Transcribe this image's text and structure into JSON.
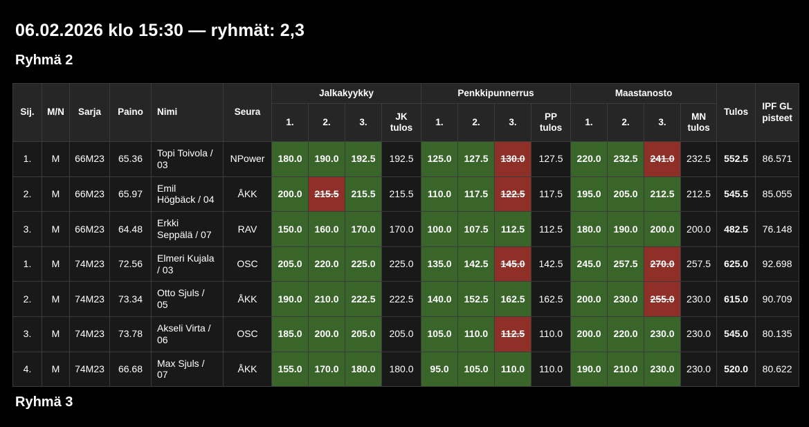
{
  "page": {
    "title": "06.02.2026 klo 15:30 — ryhmät: 2,3",
    "group_heading": "Ryhmä 2",
    "next_group_heading": "Ryhmä 3"
  },
  "colors": {
    "background": "#000000",
    "header_bg": "#262626",
    "cell_bg": "#191919",
    "border": "#3b3b3b",
    "text": "#ffffff",
    "good_lift": "#3a652a",
    "failed_lift": "#8e2f28"
  },
  "table": {
    "columns": {
      "sij": "Sij.",
      "mn": "M/N",
      "sarja": "Sarja",
      "paino": "Paino",
      "nimi": "Nimi",
      "seura": "Seura",
      "squat_group": "Jalkakyykky",
      "bench_group": "Penkkipunnerrus",
      "deadlift_group": "Maastanosto",
      "attempt1": "1.",
      "attempt2": "2.",
      "attempt3": "3.",
      "jk_tulos": "JK tulos",
      "pp_tulos": "PP tulos",
      "mn_tulos": "MN tulos",
      "tulos": "Tulos",
      "ipf": "IPF GL pisteet"
    },
    "rows": [
      {
        "sij": "1.",
        "mn": "M",
        "sarja": "66M23",
        "paino": "65.36",
        "nimi": "Topi Toivola / 03",
        "seura": "NPower",
        "squat": [
          {
            "v": "180.0",
            "r": "good"
          },
          {
            "v": "190.0",
            "r": "good"
          },
          {
            "v": "192.5",
            "r": "good"
          }
        ],
        "squat_total": "192.5",
        "bench": [
          {
            "v": "125.0",
            "r": "good"
          },
          {
            "v": "127.5",
            "r": "good"
          },
          {
            "v": "130.0",
            "r": "fail"
          }
        ],
        "bench_total": "127.5",
        "deadlift": [
          {
            "v": "220.0",
            "r": "good"
          },
          {
            "v": "232.5",
            "r": "good"
          },
          {
            "v": "241.0",
            "r": "fail"
          }
        ],
        "deadlift_total": "232.5",
        "total": "552.5",
        "points": "86.571"
      },
      {
        "sij": "2.",
        "mn": "M",
        "sarja": "66M23",
        "paino": "65.97",
        "nimi": "Emil Högbäck / 04",
        "seura": "ÅKK",
        "squat": [
          {
            "v": "200.0",
            "r": "good"
          },
          {
            "v": "215.5",
            "r": "fail"
          },
          {
            "v": "215.5",
            "r": "good"
          }
        ],
        "squat_total": "215.5",
        "bench": [
          {
            "v": "110.0",
            "r": "good"
          },
          {
            "v": "117.5",
            "r": "good"
          },
          {
            "v": "122.5",
            "r": "fail"
          }
        ],
        "bench_total": "117.5",
        "deadlift": [
          {
            "v": "195.0",
            "r": "good"
          },
          {
            "v": "205.0",
            "r": "good"
          },
          {
            "v": "212.5",
            "r": "good"
          }
        ],
        "deadlift_total": "212.5",
        "total": "545.5",
        "points": "85.055"
      },
      {
        "sij": "3.",
        "mn": "M",
        "sarja": "66M23",
        "paino": "64.48",
        "nimi": "Erkki Seppälä / 07",
        "seura": "RAV",
        "squat": [
          {
            "v": "150.0",
            "r": "good"
          },
          {
            "v": "160.0",
            "r": "good"
          },
          {
            "v": "170.0",
            "r": "good"
          }
        ],
        "squat_total": "170.0",
        "bench": [
          {
            "v": "100.0",
            "r": "good"
          },
          {
            "v": "107.5",
            "r": "good"
          },
          {
            "v": "112.5",
            "r": "good"
          }
        ],
        "bench_total": "112.5",
        "deadlift": [
          {
            "v": "180.0",
            "r": "good"
          },
          {
            "v": "190.0",
            "r": "good"
          },
          {
            "v": "200.0",
            "r": "good"
          }
        ],
        "deadlift_total": "200.0",
        "total": "482.5",
        "points": "76.148"
      },
      {
        "sij": "1.",
        "mn": "M",
        "sarja": "74M23",
        "paino": "72.56",
        "nimi": "Elmeri Kujala / 03",
        "seura": "OSC",
        "squat": [
          {
            "v": "205.0",
            "r": "good"
          },
          {
            "v": "220.0",
            "r": "good"
          },
          {
            "v": "225.0",
            "r": "good"
          }
        ],
        "squat_total": "225.0",
        "bench": [
          {
            "v": "135.0",
            "r": "good"
          },
          {
            "v": "142.5",
            "r": "good"
          },
          {
            "v": "145.0",
            "r": "fail"
          }
        ],
        "bench_total": "142.5",
        "deadlift": [
          {
            "v": "245.0",
            "r": "good"
          },
          {
            "v": "257.5",
            "r": "good"
          },
          {
            "v": "270.0",
            "r": "fail"
          }
        ],
        "deadlift_total": "257.5",
        "total": "625.0",
        "points": "92.698"
      },
      {
        "sij": "2.",
        "mn": "M",
        "sarja": "74M23",
        "paino": "73.34",
        "nimi": "Otto Sjuls / 05",
        "seura": "ÅKK",
        "squat": [
          {
            "v": "190.0",
            "r": "good"
          },
          {
            "v": "210.0",
            "r": "good"
          },
          {
            "v": "222.5",
            "r": "good"
          }
        ],
        "squat_total": "222.5",
        "bench": [
          {
            "v": "140.0",
            "r": "good"
          },
          {
            "v": "152.5",
            "r": "good"
          },
          {
            "v": "162.5",
            "r": "good"
          }
        ],
        "bench_total": "162.5",
        "deadlift": [
          {
            "v": "200.0",
            "r": "good"
          },
          {
            "v": "230.0",
            "r": "good"
          },
          {
            "v": "255.0",
            "r": "fail"
          }
        ],
        "deadlift_total": "230.0",
        "total": "615.0",
        "points": "90.709"
      },
      {
        "sij": "3.",
        "mn": "M",
        "sarja": "74M23",
        "paino": "73.78",
        "nimi": "Akseli Virta / 06",
        "seura": "OSC",
        "squat": [
          {
            "v": "185.0",
            "r": "good"
          },
          {
            "v": "200.0",
            "r": "good"
          },
          {
            "v": "205.0",
            "r": "good"
          }
        ],
        "squat_total": "205.0",
        "bench": [
          {
            "v": "105.0",
            "r": "good"
          },
          {
            "v": "110.0",
            "r": "good"
          },
          {
            "v": "112.5",
            "r": "fail"
          }
        ],
        "bench_total": "110.0",
        "deadlift": [
          {
            "v": "200.0",
            "r": "good"
          },
          {
            "v": "220.0",
            "r": "good"
          },
          {
            "v": "230.0",
            "r": "good"
          }
        ],
        "deadlift_total": "230.0",
        "total": "545.0",
        "points": "80.135"
      },
      {
        "sij": "4.",
        "mn": "M",
        "sarja": "74M23",
        "paino": "66.68",
        "nimi": "Max Sjuls / 07",
        "seura": "ÅKK",
        "squat": [
          {
            "v": "155.0",
            "r": "good"
          },
          {
            "v": "170.0",
            "r": "good"
          },
          {
            "v": "180.0",
            "r": "good"
          }
        ],
        "squat_total": "180.0",
        "bench": [
          {
            "v": "95.0",
            "r": "good"
          },
          {
            "v": "105.0",
            "r": "good"
          },
          {
            "v": "110.0",
            "r": "good"
          }
        ],
        "bench_total": "110.0",
        "deadlift": [
          {
            "v": "190.0",
            "r": "good"
          },
          {
            "v": "210.0",
            "r": "good"
          },
          {
            "v": "230.0",
            "r": "good"
          }
        ],
        "deadlift_total": "230.0",
        "total": "520.0",
        "points": "80.622"
      }
    ]
  }
}
